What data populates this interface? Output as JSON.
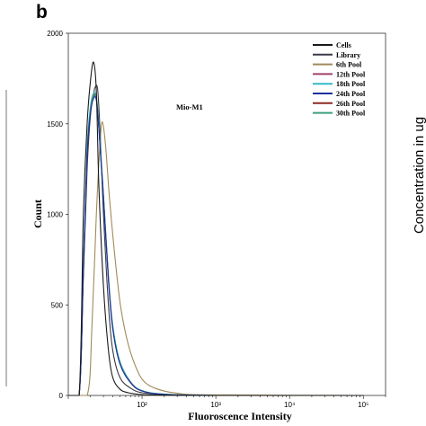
{
  "panel_letter": "b",
  "right_panel_label": "Concentration in ug",
  "chart_data": {
    "type": "line",
    "title": "",
    "annotation": "Mio-M1",
    "xlabel": "Fluoroscence Intensity",
    "ylabel": "Count",
    "xscale": "log",
    "xlim": [
      10,
      200000
    ],
    "ylim": [
      0,
      2000
    ],
    "x_tick_labels": [
      "10²",
      "10³",
      "10⁴",
      "10⁵"
    ],
    "x_tick_values": [
      100,
      1000,
      10000,
      100000
    ],
    "y_ticks": [
      0,
      500,
      1000,
      1500,
      2000
    ],
    "grid": false,
    "legend_position": "top-right",
    "series": [
      {
        "name": "Cells",
        "color": "#1a1a1a",
        "points": [
          [
            10,
            0
          ],
          [
            14,
            0
          ],
          [
            16,
            1000
          ],
          [
            18,
            1500
          ],
          [
            20,
            1740
          ],
          [
            22,
            1840
          ],
          [
            24,
            1680
          ],
          [
            26,
            1150
          ],
          [
            30,
            600
          ],
          [
            35,
            250
          ],
          [
            40,
            100
          ],
          [
            50,
            35
          ],
          [
            65,
            15
          ],
          [
            100,
            5
          ],
          [
            200,
            2
          ],
          [
            1000,
            0
          ],
          [
            100000,
            0
          ]
        ]
      },
      {
        "name": "Library",
        "color": "#3a3a48",
        "points": [
          [
            10,
            0
          ],
          [
            14,
            0
          ],
          [
            16,
            650
          ],
          [
            18,
            1250
          ],
          [
            20,
            1550
          ],
          [
            22,
            1660
          ],
          [
            23,
            1700
          ],
          [
            25,
            1690
          ],
          [
            27,
            1450
          ],
          [
            30,
            1000
          ],
          [
            35,
            500
          ],
          [
            40,
            250
          ],
          [
            50,
            100
          ],
          [
            70,
            40
          ],
          [
            100,
            15
          ],
          [
            200,
            5
          ],
          [
            1000,
            0
          ],
          [
            100000,
            0
          ]
        ]
      },
      {
        "name": "6th Pool",
        "color": "#a08a5a",
        "points": [
          [
            10,
            0
          ],
          [
            18,
            0
          ],
          [
            21,
            400
          ],
          [
            24,
            1000
          ],
          [
            27,
            1400
          ],
          [
            29,
            1510
          ],
          [
            32,
            1380
          ],
          [
            36,
            1100
          ],
          [
            42,
            800
          ],
          [
            50,
            520
          ],
          [
            60,
            340
          ],
          [
            75,
            200
          ],
          [
            100,
            90
          ],
          [
            150,
            40
          ],
          [
            300,
            12
          ],
          [
            1000,
            3
          ],
          [
            100000,
            0
          ]
        ]
      },
      {
        "name": "12th Pool",
        "color": "#a0406a",
        "points": [
          [
            10,
            0
          ],
          [
            14,
            0
          ],
          [
            16,
            700
          ],
          [
            18,
            1350
          ],
          [
            20,
            1580
          ],
          [
            22,
            1660
          ],
          [
            24,
            1640
          ],
          [
            26,
            1480
          ],
          [
            30,
            1100
          ],
          [
            35,
            650
          ],
          [
            40,
            380
          ],
          [
            50,
            180
          ],
          [
            70,
            70
          ],
          [
            100,
            25
          ],
          [
            200,
            6
          ],
          [
            1000,
            0
          ],
          [
            100000,
            0
          ]
        ]
      },
      {
        "name": "18th Pool",
        "color": "#35b8c8",
        "points": [
          [
            10,
            0
          ],
          [
            14,
            0
          ],
          [
            16,
            720
          ],
          [
            18,
            1370
          ],
          [
            20,
            1600
          ],
          [
            22,
            1670
          ],
          [
            24,
            1650
          ],
          [
            26,
            1500
          ],
          [
            30,
            1110
          ],
          [
            35,
            660
          ],
          [
            40,
            390
          ],
          [
            50,
            190
          ],
          [
            70,
            75
          ],
          [
            100,
            27
          ],
          [
            200,
            7
          ],
          [
            1000,
            0
          ],
          [
            100000,
            0
          ]
        ]
      },
      {
        "name": "24th Pool",
        "color": "#1c2f9c",
        "points": [
          [
            10,
            0
          ],
          [
            14,
            0
          ],
          [
            16,
            680
          ],
          [
            18,
            1320
          ],
          [
            20,
            1560
          ],
          [
            22,
            1640
          ],
          [
            24,
            1630
          ],
          [
            26,
            1470
          ],
          [
            30,
            1080
          ],
          [
            35,
            640
          ],
          [
            40,
            370
          ],
          [
            50,
            175
          ],
          [
            70,
            70
          ],
          [
            100,
            24
          ],
          [
            200,
            6
          ],
          [
            1000,
            0
          ],
          [
            100000,
            0
          ]
        ]
      },
      {
        "name": "26th Pool",
        "color": "#8a2a20",
        "points": [
          [
            10,
            0
          ],
          [
            14,
            0
          ],
          [
            16,
            690
          ],
          [
            18,
            1330
          ],
          [
            20,
            1570
          ],
          [
            22,
            1650
          ],
          [
            24,
            1635
          ],
          [
            26,
            1475
          ],
          [
            30,
            1090
          ],
          [
            35,
            645
          ],
          [
            40,
            375
          ],
          [
            50,
            178
          ],
          [
            70,
            72
          ],
          [
            100,
            25
          ],
          [
            200,
            6
          ],
          [
            1000,
            0
          ],
          [
            100000,
            0
          ]
        ]
      },
      {
        "name": "30th Pool",
        "color": "#3aa07a",
        "points": [
          [
            10,
            0
          ],
          [
            14,
            0
          ],
          [
            16,
            700
          ],
          [
            18,
            1340
          ],
          [
            20,
            1575
          ],
          [
            22,
            1655
          ],
          [
            24,
            1640
          ],
          [
            26,
            1480
          ],
          [
            30,
            1095
          ],
          [
            35,
            650
          ],
          [
            40,
            380
          ],
          [
            50,
            182
          ],
          [
            70,
            73
          ],
          [
            100,
            26
          ],
          [
            200,
            7
          ],
          [
            1000,
            0
          ],
          [
            100000,
            0
          ]
        ]
      }
    ]
  }
}
